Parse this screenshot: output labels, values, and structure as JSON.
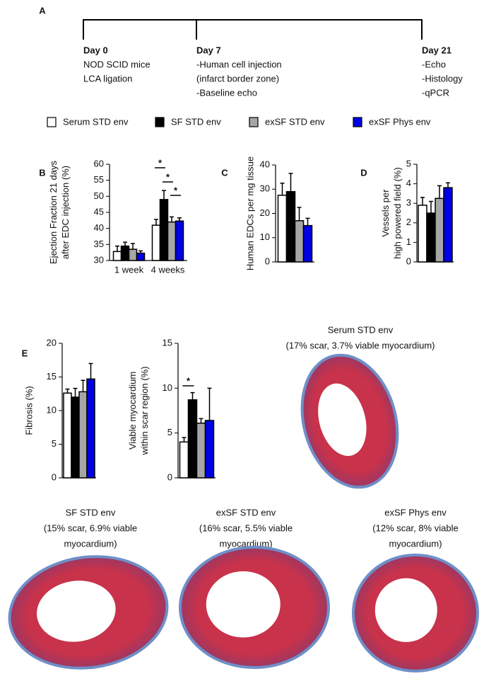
{
  "panels": [
    "A",
    "B",
    "C",
    "D",
    "E"
  ],
  "timeline": [
    {
      "day": "Day 0",
      "lines": [
        "NOD SCID mice",
        "LCA ligation"
      ]
    },
    {
      "day": "Day 7",
      "lines": [
        "-Human cell injection",
        "(infarct border zone)",
        "-Baseline echo"
      ]
    },
    {
      "day": "Day 21",
      "lines": [
        "-Echo",
        "-Histology",
        "-qPCR"
      ]
    }
  ],
  "legend": [
    {
      "name": "Serum STD env",
      "color": "#ffffff"
    },
    {
      "name": "SF STD env",
      "color": "#000000"
    },
    {
      "name": "exSF STD env",
      "color": "#a6a6a6"
    },
    {
      "name": "exSF Phys env",
      "color": "#0000e6"
    }
  ],
  "chart_data": [
    {
      "type": "bar",
      "ylabel": [
        "Ejection Fraction 21 days",
        "after EDC injection (%)"
      ],
      "categories": [
        "1 week",
        "4 weeks"
      ],
      "series": [
        {
          "values": [
            32.8,
            41
          ],
          "errors": [
            1.7,
            1.8
          ]
        },
        {
          "values": [
            34.5,
            49
          ],
          "errors": [
            1.2,
            2.8
          ]
        },
        {
          "values": [
            33.5,
            42
          ],
          "errors": [
            1.8,
            1.6
          ]
        },
        {
          "values": [
            32.3,
            42.3
          ],
          "errors": [
            0.7,
            1.0
          ]
        }
      ],
      "ylim": [
        30,
        60
      ],
      "yticks": [
        30,
        35,
        40,
        45,
        50,
        55,
        60
      ],
      "annotations": [
        "*",
        "*",
        "*"
      ]
    },
    {
      "type": "bar",
      "ylabel": [
        "Human EDCs per mg tissue"
      ],
      "series": [
        {
          "values": [
            27.5
          ],
          "errors": [
            5
          ]
        },
        {
          "values": [
            29
          ],
          "errors": [
            7.5
          ]
        },
        {
          "values": [
            17
          ],
          "errors": [
            5.5
          ]
        },
        {
          "values": [
            15
          ],
          "errors": [
            3
          ]
        }
      ],
      "ylim": [
        0,
        40
      ],
      "yticks": [
        0,
        10,
        20,
        30,
        40
      ],
      "annotations": []
    },
    {
      "type": "bar",
      "ylabel": [
        "Vessels per",
        "high powered field (%)"
      ],
      "series": [
        {
          "values": [
            2.9
          ],
          "errors": [
            0.4
          ]
        },
        {
          "values": [
            2.5
          ],
          "errors": [
            0.6
          ]
        },
        {
          "values": [
            3.25
          ],
          "errors": [
            0.65
          ]
        },
        {
          "values": [
            3.8
          ],
          "errors": [
            0.25
          ]
        }
      ],
      "ylim": [
        0,
        5
      ],
      "yticks": [
        0,
        1,
        2,
        3,
        4,
        5
      ],
      "annotations": []
    },
    {
      "type": "bar",
      "ylabel": [
        "Fibrosis (%)"
      ],
      "series": [
        {
          "values": [
            12.6
          ],
          "errors": [
            0.6
          ]
        },
        {
          "values": [
            12
          ],
          "errors": [
            1.3
          ]
        },
        {
          "values": [
            12.8
          ],
          "errors": [
            1.7
          ]
        },
        {
          "values": [
            14.7
          ],
          "errors": [
            2.3
          ]
        }
      ],
      "ylim": [
        0,
        20
      ],
      "yticks": [
        0,
        5,
        10,
        15,
        20
      ],
      "annotations": []
    },
    {
      "type": "bar",
      "ylabel": [
        "Viable myocardium",
        "within scar region (%)"
      ],
      "series": [
        {
          "values": [
            4
          ],
          "errors": [
            0.5
          ]
        },
        {
          "values": [
            8.7
          ],
          "errors": [
            0.8
          ]
        },
        {
          "values": [
            6.1
          ],
          "errors": [
            0.5
          ]
        },
        {
          "values": [
            6.4
          ],
          "errors": [
            3.6
          ]
        }
      ],
      "ylim": [
        0,
        15
      ],
      "yticks": [
        0,
        5,
        10,
        15
      ],
      "annotations": [
        "*"
      ]
    }
  ],
  "images": [
    {
      "caption": [
        "Serum STD env",
        "(17% scar, 3.7% viable myocardium)"
      ]
    },
    {
      "caption": [
        "SF STD env",
        "(15% scar, 6.9% viable",
        "myocardium)"
      ]
    },
    {
      "caption": [
        "exSF STD env",
        "(16% scar, 5.5% viable",
        "myocardium)"
      ]
    },
    {
      "caption": [
        "exSF Phys env",
        "(12% scar, 8% viable",
        "myocardium)"
      ]
    }
  ]
}
